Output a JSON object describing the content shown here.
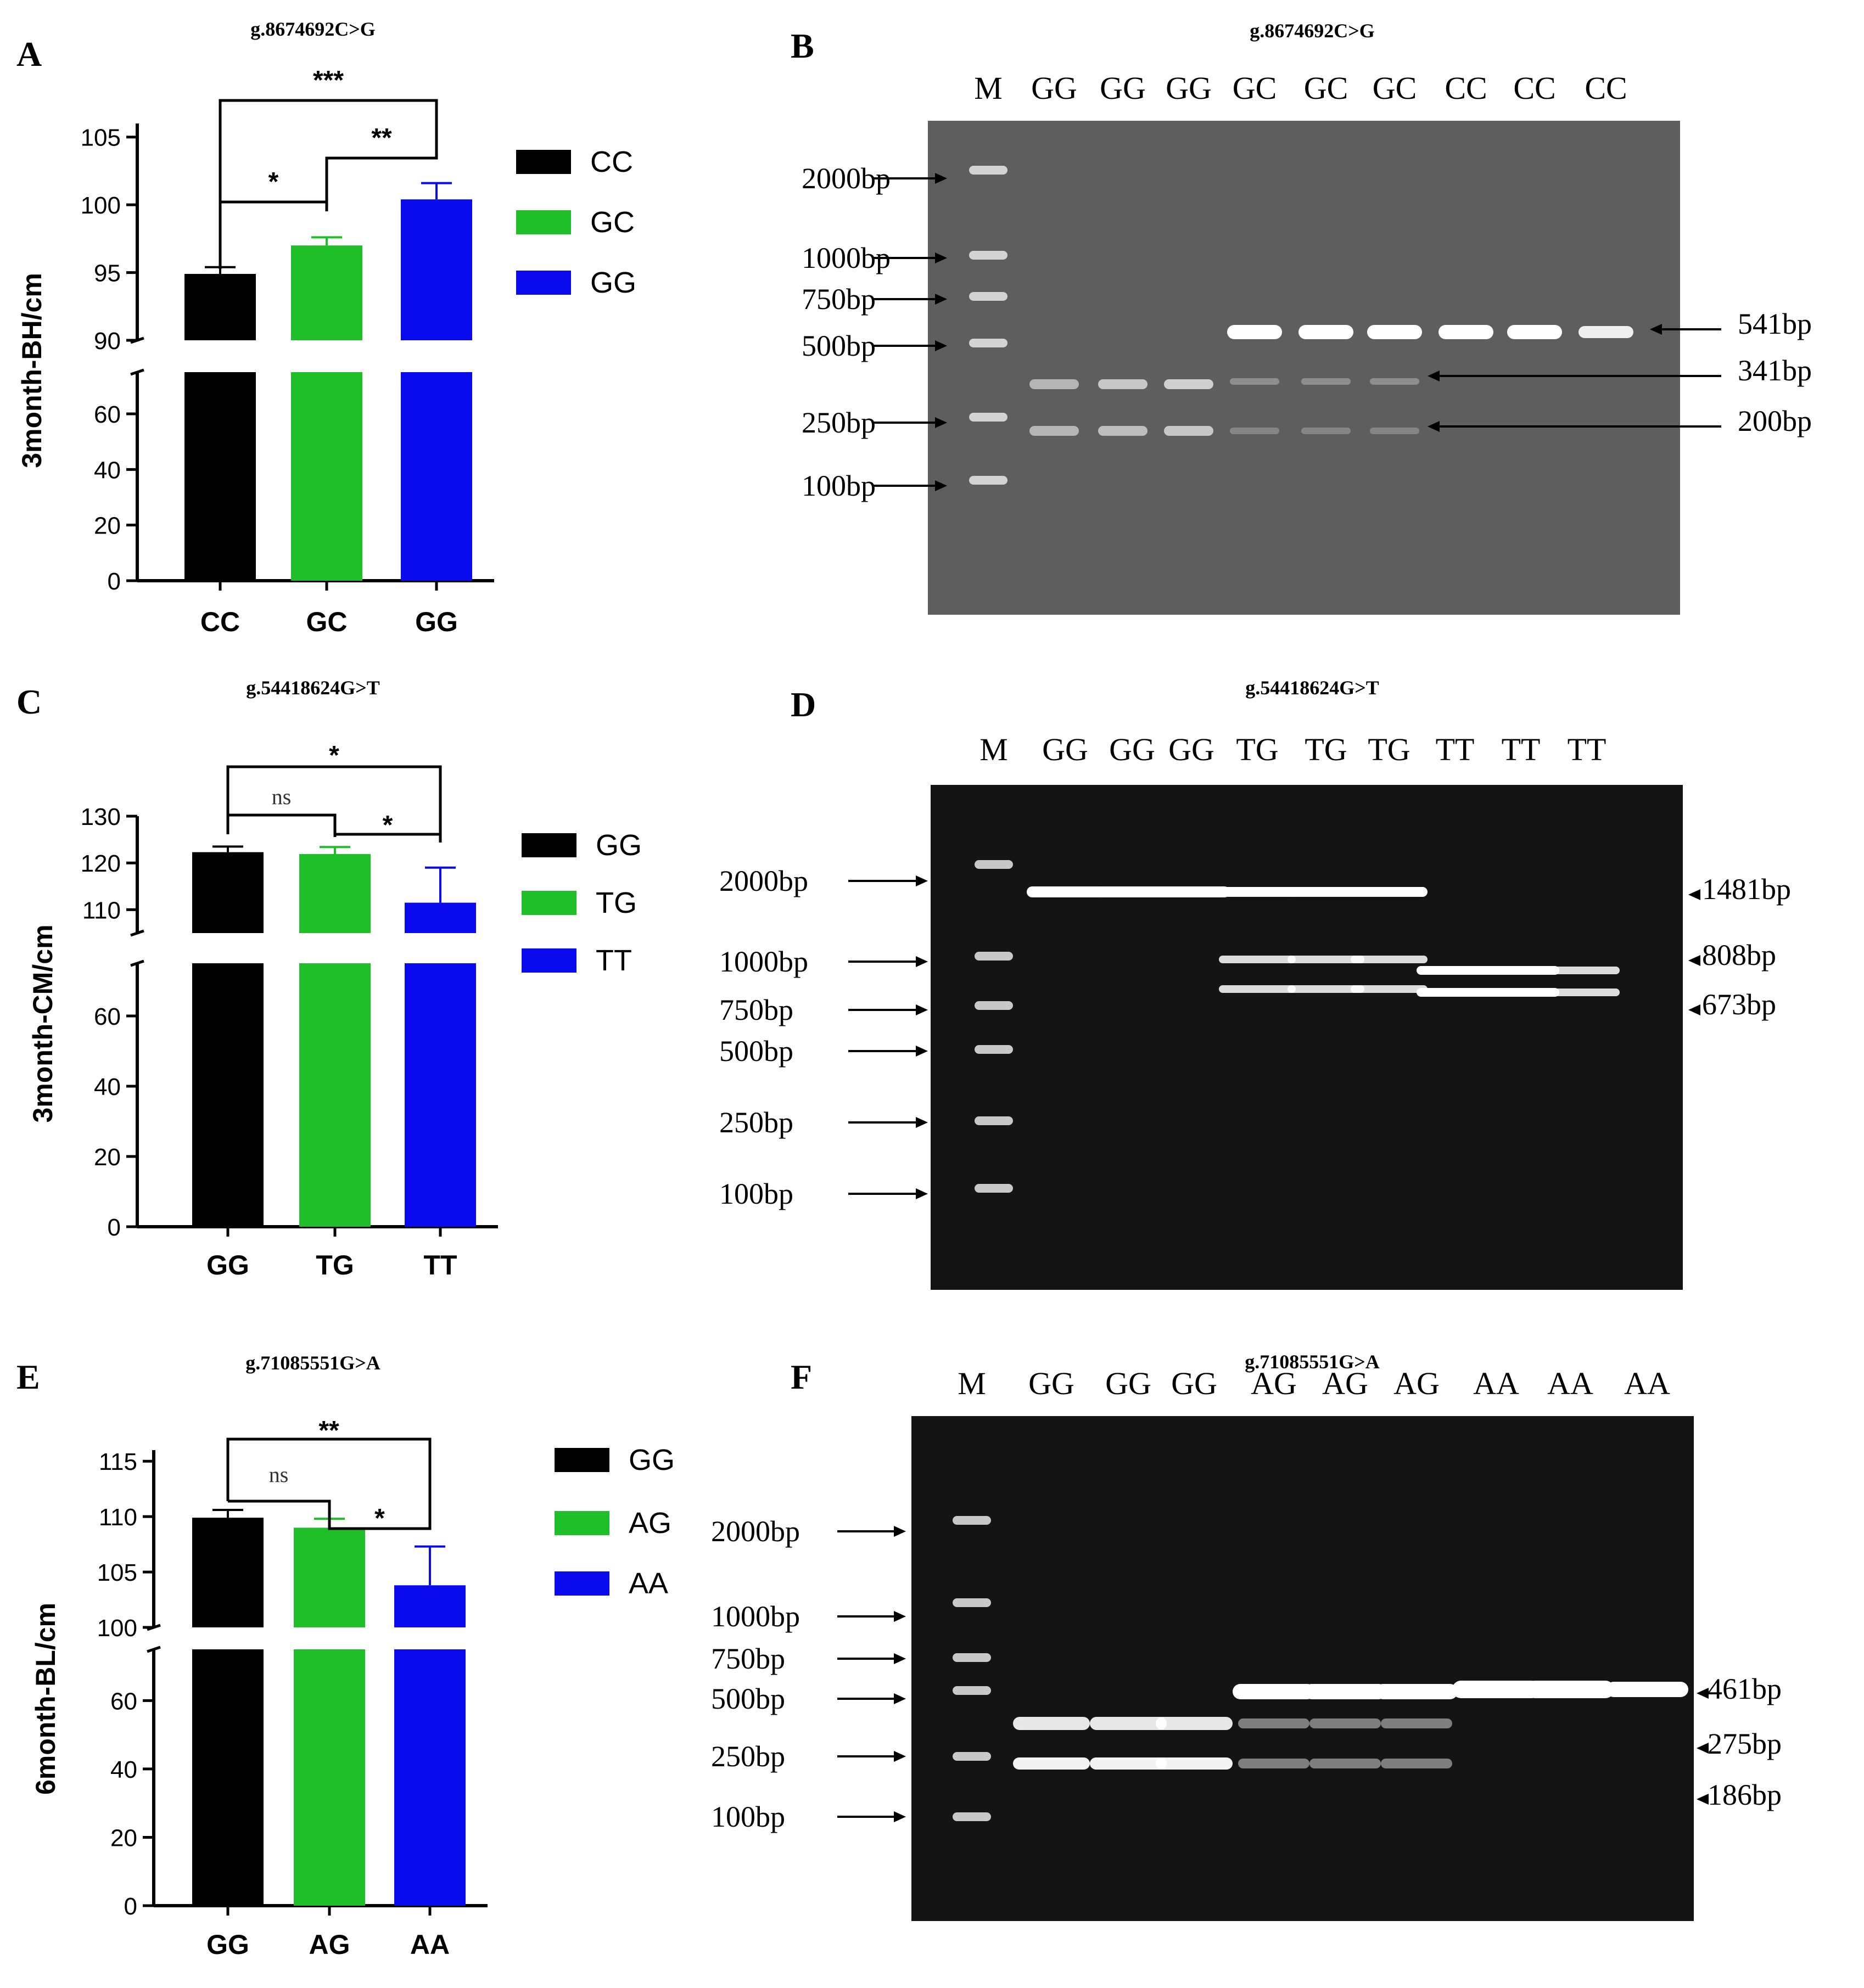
{
  "figure": {
    "panels": [
      {
        "id": "A",
        "letter": "A",
        "title": "g.8674692C>G",
        "ylabel": "3month-BH/cm",
        "upper_ticks": [
          90,
          95,
          100,
          105
        ],
        "lower_ticks": [
          0,
          20,
          40,
          60
        ],
        "legend": [
          {
            "label": "CC",
            "color": "#000000"
          },
          {
            "label": "GC",
            "color": "#1fbf2a"
          },
          {
            "label": "GG",
            "color": "#0a0aee"
          }
        ],
        "significance": [
          {
            "label": "***"
          },
          {
            "label": "**"
          },
          {
            "label": "*"
          }
        ]
      },
      {
        "id": "C",
        "letter": "C",
        "title": "g.54418624G>T",
        "ylabel": "3month-CM/cm",
        "upper_ticks": [
          110,
          120,
          130
        ],
        "lower_ticks": [
          0,
          20,
          40,
          60
        ],
        "legend": [
          {
            "label": "GG",
            "color": "#000000"
          },
          {
            "label": "TG",
            "color": "#1fbf2a"
          },
          {
            "label": "TT",
            "color": "#0a0aee"
          }
        ],
        "significance": [
          {
            "label": "*"
          },
          {
            "label": "ns"
          },
          {
            "label": "*"
          }
        ]
      },
      {
        "id": "E",
        "letter": "E",
        "title": "g.71085551G>A",
        "ylabel": "6month-BL/cm",
        "upper_ticks": [
          100,
          105,
          110,
          115
        ],
        "lower_ticks": [
          0,
          20,
          40,
          60
        ],
        "legend": [
          {
            "label": "GG",
            "color": "#000000"
          },
          {
            "label": "AG",
            "color": "#1fbf2a"
          },
          {
            "label": "AA",
            "color": "#0a0aee"
          }
        ],
        "significance": [
          {
            "label": "**"
          },
          {
            "label": "ns"
          },
          {
            "label": "*"
          }
        ]
      }
    ],
    "gels": [
      {
        "id": "B",
        "letter": "B",
        "title": "g.8674692C>G",
        "background": "#5e5e5e",
        "lanes": [
          "M",
          "GG",
          "GG",
          "GG",
          "GC",
          "GC",
          "GC",
          "CC",
          "CC",
          "CC"
        ],
        "markers": [
          "2000bp",
          "1000bp",
          "750bp",
          "500bp",
          "250bp",
          "100bp"
        ],
        "band_labels": [
          "541bp",
          "341bp",
          "200bp"
        ]
      },
      {
        "id": "D",
        "letter": "D",
        "title": "g.54418624G>T",
        "background": "#141414",
        "lanes": [
          "M",
          "GG",
          "GG",
          "GG",
          "TG",
          "TG",
          "TG",
          "TT",
          "TT",
          "TT"
        ],
        "markers": [
          "2000bp",
          "1000bp",
          "750bp",
          "500bp",
          "250bp",
          "100bp"
        ],
        "band_labels": [
          "1481bp",
          "808bp",
          "673bp"
        ]
      },
      {
        "id": "F",
        "letter": "F",
        "title": "g.71085551G>A",
        "background": "#141414",
        "lanes": [
          "M",
          "GG",
          "GG",
          "GG",
          "AG",
          "AG",
          "AG",
          "AA",
          "AA",
          "AA"
        ],
        "markers": [
          "2000bp",
          "1000bp",
          "750bp",
          "500bp",
          "250bp",
          "100bp"
        ],
        "band_labels": [
          "461bp",
          "275bp",
          "186bp"
        ]
      }
    ]
  },
  "chart_data": [
    {
      "type": "bar",
      "title": "g.8674692C>G",
      "categories": [
        "CC",
        "GC",
        "GG"
      ],
      "values": [
        94.9,
        97.0,
        100.4
      ],
      "errors": [
        0.5,
        0.6,
        1.2
      ],
      "ylabel": "3month-BH/cm",
      "xlabel": "",
      "ylim_lower": [
        0,
        75
      ],
      "ylim_upper": [
        90,
        106
      ],
      "axis_break": true,
      "colors": [
        "#000000",
        "#1fbf2a",
        "#0a0aee"
      ]
    },
    {
      "type": "bar",
      "title": "g.54418624G>T",
      "categories": [
        "GG",
        "TG",
        "TT"
      ],
      "values": [
        122.3,
        121.9,
        111.5
      ],
      "errors": [
        1.2,
        1.5,
        7.5
      ],
      "ylabel": "3month-CM/cm",
      "xlabel": "",
      "ylim_lower": [
        0,
        75
      ],
      "ylim_upper": [
        105,
        130
      ],
      "axis_break": true,
      "colors": [
        "#000000",
        "#1fbf2a",
        "#0a0aee"
      ]
    },
    {
      "type": "bar",
      "title": "g.71085551G>A",
      "categories": [
        "GG",
        "AG",
        "AA"
      ],
      "values": [
        109.9,
        109.0,
        103.8
      ],
      "errors": [
        0.7,
        0.8,
        3.5
      ],
      "ylabel": "6month-BL/cm",
      "xlabel": "",
      "ylim_lower": [
        0,
        75
      ],
      "ylim_upper": [
        100,
        116
      ],
      "axis_break": true,
      "colors": [
        "#000000",
        "#1fbf2a",
        "#0a0aee"
      ]
    }
  ]
}
